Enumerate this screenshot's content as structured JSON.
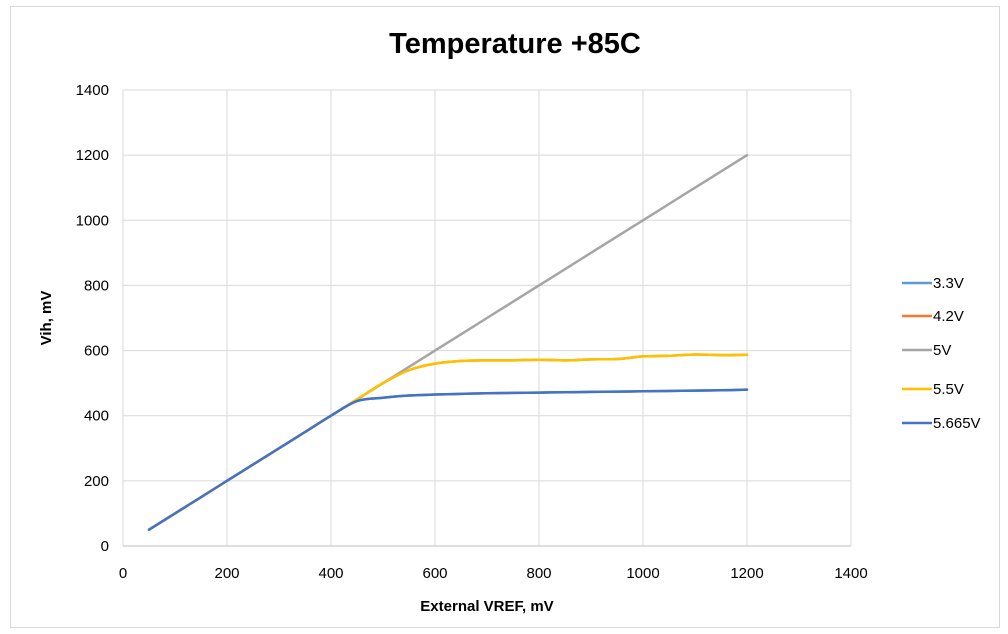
{
  "chart_data": {
    "type": "line",
    "title": "Temperature +85C",
    "xlabel": "External VREF, mV",
    "ylabel": "Vih, mV",
    "xlim": [
      0,
      1400
    ],
    "ylim": [
      0,
      1400
    ],
    "xticks": [
      0,
      200,
      400,
      600,
      800,
      1000,
      1200,
      1400
    ],
    "yticks": [
      0,
      200,
      400,
      600,
      800,
      1000,
      1200,
      1400
    ],
    "grid": true,
    "legend_position": "right",
    "x": [
      50,
      100,
      150,
      200,
      250,
      300,
      350,
      400,
      450,
      500,
      550,
      600,
      650,
      700,
      750,
      800,
      850,
      900,
      950,
      1000,
      1050,
      1100,
      1150,
      1200
    ],
    "series": [
      {
        "name": "3.3V",
        "color": "#5b9bd5",
        "values": [
          50,
          100,
          150,
          200,
          250,
          300,
          350,
          400,
          445,
          455,
          462,
          465,
          467,
          469,
          470,
          471,
          472,
          473,
          474,
          475,
          476,
          477,
          478,
          480
        ]
      },
      {
        "name": "4.2V",
        "color": "#ed7d31",
        "values": [
          50,
          100,
          150,
          200,
          250,
          300,
          350,
          400,
          450,
          500,
          540,
          560,
          568,
          570,
          570,
          572,
          570,
          573,
          574,
          582,
          584,
          588,
          586,
          587
        ]
      },
      {
        "name": "5V",
        "color": "#a5a5a5",
        "values": [
          50,
          100,
          150,
          200,
          250,
          300,
          350,
          400,
          450,
          500,
          550,
          600,
          650,
          700,
          750,
          800,
          850,
          900,
          950,
          1000,
          1050,
          1100,
          1150,
          1200
        ]
      },
      {
        "name": "5.5V",
        "color": "#ffc000",
        "values": [
          50,
          100,
          150,
          200,
          250,
          300,
          350,
          400,
          450,
          500,
          540,
          560,
          568,
          570,
          570,
          572,
          570,
          573,
          574,
          582,
          584,
          588,
          586,
          587
        ]
      },
      {
        "name": "5.665V",
        "color": "#4472c4",
        "values": [
          50,
          100,
          150,
          200,
          250,
          300,
          350,
          400,
          445,
          455,
          462,
          465,
          467,
          469,
          470,
          471,
          472,
          473,
          474,
          475,
          476,
          477,
          478,
          480
        ]
      }
    ]
  }
}
